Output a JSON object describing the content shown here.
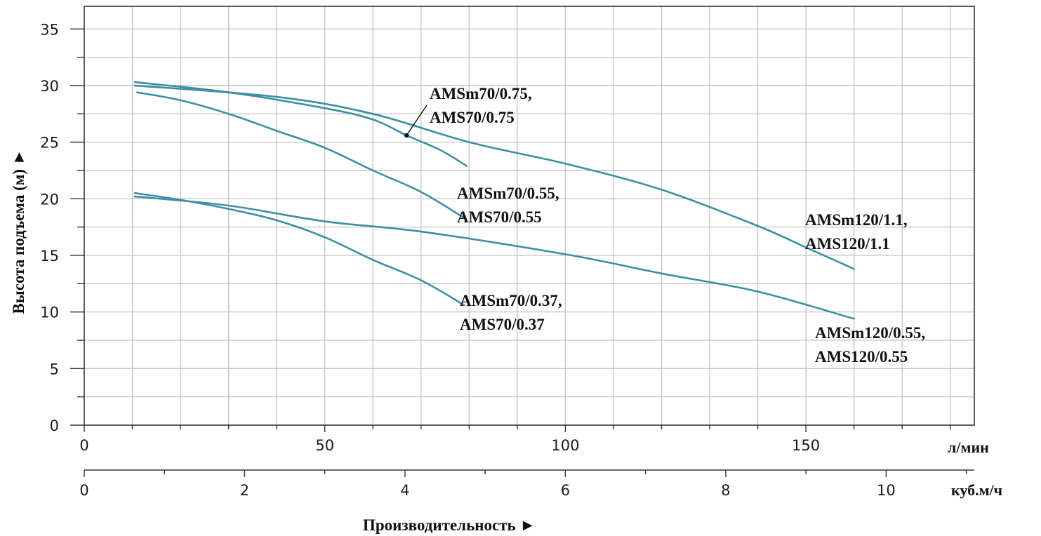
{
  "chart_data": {
    "type": "line",
    "xlabel": "Производительность ►",
    "ylabel": "Высота подъема (м) ►",
    "x_unit_primary": "л/мин",
    "x_unit_secondary": "куб.м/ч",
    "xlim": [
      0,
      185
    ],
    "ylim": [
      0,
      37
    ],
    "secondary_xlim": [
      0,
      11.1
    ],
    "x_ticks": [
      0,
      50,
      100,
      150
    ],
    "x_ticks_secondary": [
      0,
      2,
      4,
      6,
      8,
      10
    ],
    "y_ticks": [
      0,
      5,
      10,
      15,
      20,
      25,
      30,
      35
    ],
    "grid": true,
    "curve_color": "#3e8fa3",
    "series": [
      {
        "name": "AMSm70/0.75, AMS70/0.75",
        "label_lines": [
          "AMSm70/0.75,",
          "AMS70/0.75"
        ],
        "x": [
          10.5,
          30,
          50,
          60,
          67,
          74,
          79.5
        ],
        "y": [
          30.3,
          29.4,
          28.0,
          27.0,
          25.6,
          24.3,
          22.9
        ]
      },
      {
        "name": "AMSm70/0.55, AMS70/0.55",
        "label_lines": [
          "AMSm70/0.55,",
          "AMS70/0.55"
        ],
        "x": [
          11,
          20,
          30,
          40,
          50,
          60,
          70,
          79
        ],
        "y": [
          29.4,
          28.7,
          27.5,
          26.0,
          24.5,
          22.5,
          20.6,
          18.3
        ]
      },
      {
        "name": "AMSm70/0.37, AMS70/0.37",
        "label_lines": [
          "AMSm70/0.37,",
          "AMS70/0.37"
        ],
        "x": [
          10.5,
          20,
          30,
          40,
          50,
          60,
          70,
          79
        ],
        "y": [
          20.5,
          19.9,
          19.1,
          18.1,
          16.6,
          14.6,
          12.8,
          10.6
        ]
      },
      {
        "name": "AMSm120/1.1, AMS120/1.1",
        "label_lines": [
          "AMSm120/1.1,",
          "AMS120/1.1"
        ],
        "x": [
          10.5,
          40,
          60,
          80,
          100,
          120,
          140,
          150,
          160
        ],
        "y": [
          30.0,
          29.0,
          27.5,
          25.0,
          23.1,
          20.8,
          17.6,
          15.7,
          13.8
        ]
      },
      {
        "name": "AMSm120/0.55, AMS120/0.55",
        "label_lines": [
          "AMSm120/0.55,",
          "AMS120/0.55"
        ],
        "x": [
          10.5,
          30,
          50,
          70,
          100,
          120,
          140,
          160
        ],
        "y": [
          20.2,
          19.4,
          18.0,
          17.1,
          15.1,
          13.4,
          11.8,
          9.4
        ]
      }
    ],
    "annotation_point": {
      "series_index": 0,
      "x": 67,
      "y": 25.6
    }
  }
}
